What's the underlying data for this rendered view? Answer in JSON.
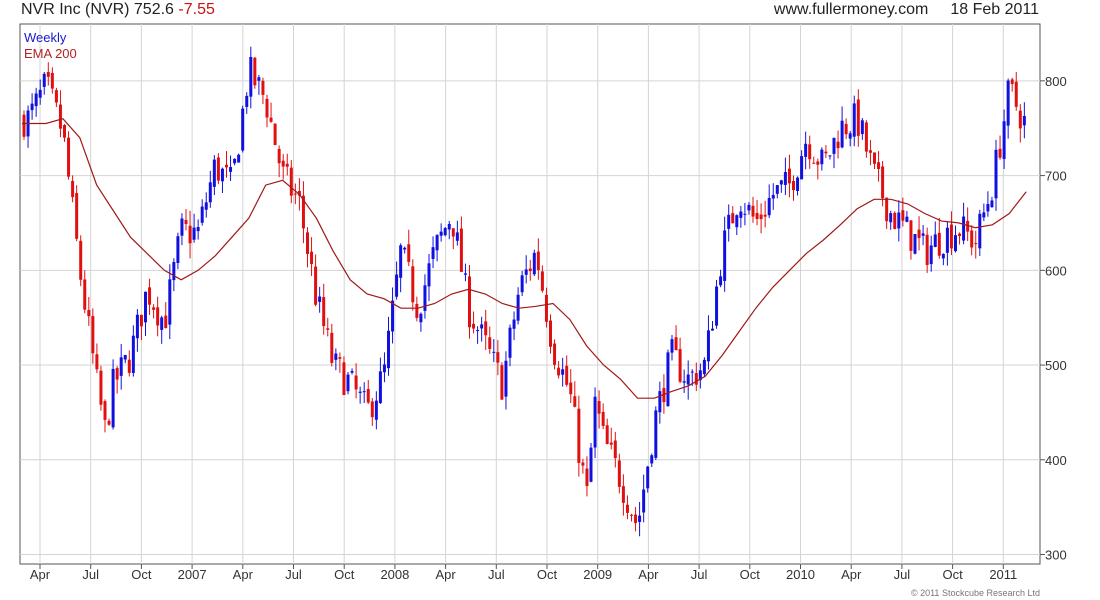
{
  "header": {
    "title": "NVR Inc (NVR)",
    "last_price": "752.6",
    "change": "-7.55",
    "source": "www.fullermoney.com",
    "date": "18 Feb 2011"
  },
  "copyright": "© 2011 Stockcube Research Ltd",
  "colors": {
    "up": "#1010e0",
    "down": "#e01010",
    "ema": "#a01818",
    "grid": "#d4d4d4",
    "axis": "#555555"
  },
  "chart_data": {
    "type": "candlestick",
    "legend": [
      "Weekly",
      "EMA 200"
    ],
    "legend_position": "top-left",
    "x_ticks": [
      "Apr",
      "Jul",
      "Oct",
      "2007",
      "Apr",
      "Jul",
      "Oct",
      "2008",
      "Apr",
      "Jul",
      "Oct",
      "2009",
      "Apr",
      "Jul",
      "Oct",
      "2010",
      "Apr",
      "Jul",
      "Oct",
      "2011"
    ],
    "y_ticks": [
      300,
      400,
      500,
      600,
      700,
      800
    ],
    "ylim": [
      290,
      860
    ],
    "y_axis_side": "right",
    "grid": true,
    "weekly_close_path": [
      [
        "Mar 2006",
        760
      ],
      [
        "Apr 2006",
        795
      ],
      [
        "May 2006",
        745
      ],
      [
        "Jun 2006",
        600
      ],
      [
        "Jul 2006",
        480
      ],
      [
        "Jul 2006 (low)",
        430
      ],
      [
        "Aug 2006",
        480
      ],
      [
        "Sep 2006",
        510
      ],
      [
        "Oct 2006",
        580
      ],
      [
        "Nov 2006",
        545
      ],
      [
        "Dec 2006",
        640
      ],
      [
        "Jan 2007",
        640
      ],
      [
        "Feb 2007",
        710
      ],
      [
        "Mar 2007",
        690
      ],
      [
        "Apr 2007",
        810
      ],
      [
        "May 2007",
        780
      ],
      [
        "Jun 2007",
        700
      ],
      [
        "Jul 2007",
        670
      ],
      [
        "Aug 2007",
        570
      ],
      [
        "Sep 2007",
        500
      ],
      [
        "Oct 2007",
        480
      ],
      [
        "Nov 2007",
        450
      ],
      [
        "Dec 2007",
        490
      ],
      [
        "Jan 2008",
        620
      ],
      [
        "Feb 2008",
        560
      ],
      [
        "Mar 2008",
        620
      ],
      [
        "Apr 2008",
        660
      ],
      [
        "May 2008",
        560
      ],
      [
        "Jun 2008",
        520
      ],
      [
        "Jul 2008",
        480
      ],
      [
        "Aug 2008",
        580
      ],
      [
        "Sep 2008",
        620
      ],
      [
        "Oct 2008",
        520
      ],
      [
        "Nov 2008",
        470
      ],
      [
        "Dec 2008",
        360
      ],
      [
        "Dec 2008 (rebound)",
        460
      ],
      [
        "Jan 2009",
        420
      ],
      [
        "Feb 2009",
        380
      ],
      [
        "Mar 2009 (low)",
        330
      ],
      [
        "Apr 2009",
        440
      ],
      [
        "May 2009",
        510
      ],
      [
        "Jun 2009",
        485
      ],
      [
        "Jul 2009",
        500
      ],
      [
        "Aug 2009",
        620
      ],
      [
        "Sep 2009",
        680
      ],
      [
        "Oct 2009",
        650
      ],
      [
        "Nov 2009",
        680
      ],
      [
        "Dec 2009",
        690
      ],
      [
        "Jan 2010",
        740
      ],
      [
        "Feb 2010",
        710
      ],
      [
        "Mar 2010",
        750
      ],
      [
        "Apr 2010",
        760
      ],
      [
        "May 2010",
        700
      ],
      [
        "Jun 2010",
        660
      ],
      [
        "Jul 2010",
        640
      ],
      [
        "Aug 2010",
        620
      ],
      [
        "Sep 2010",
        635
      ],
      [
        "Oct 2010",
        645
      ],
      [
        "Nov 2010",
        630
      ],
      [
        "Dec 2010",
        690
      ],
      [
        "Jan 2011",
        790
      ],
      [
        "Feb 2011",
        752.6
      ]
    ],
    "ema_path": [
      [
        "Mar 2006",
        755
      ],
      [
        "Apr 2006",
        755
      ],
      [
        "May 2006",
        760
      ],
      [
        "Jun 2006",
        740
      ],
      [
        "Jul 2006",
        690
      ],
      [
        "Sep 2006",
        635
      ],
      [
        "Nov 2006",
        600
      ],
      [
        "Dec 2006",
        590
      ],
      [
        "Jan 2007",
        600
      ],
      [
        "Feb 2007",
        615
      ],
      [
        "Mar 2007",
        635
      ],
      [
        "Apr 2007",
        655
      ],
      [
        "May 2007",
        690
      ],
      [
        "Jun 2007",
        695
      ],
      [
        "Jul 2007",
        680
      ],
      [
        "Aug 2007",
        655
      ],
      [
        "Sep 2007",
        620
      ],
      [
        "Oct 2007",
        590
      ],
      [
        "Nov 2007",
        575
      ],
      [
        "Dec 2007",
        570
      ],
      [
        "Jan 2008",
        560
      ],
      [
        "Feb 2008",
        560
      ],
      [
        "Mar 2008",
        565
      ],
      [
        "Apr 2008",
        575
      ],
      [
        "May 2008",
        580
      ],
      [
        "Jun 2008",
        575
      ],
      [
        "Jul 2008",
        565
      ],
      [
        "Aug 2008",
        560
      ],
      [
        "Sep 2008",
        562
      ],
      [
        "Oct 2008",
        565
      ],
      [
        "Nov 2008",
        548
      ],
      [
        "Dec 2008",
        520
      ],
      [
        "Jan 2009",
        500
      ],
      [
        "Feb 2009",
        485
      ],
      [
        "Mar 2009",
        465
      ],
      [
        "Apr 2009",
        465
      ],
      [
        "May 2009",
        472
      ],
      [
        "Jun 2009",
        478
      ],
      [
        "Jul 2009",
        488
      ],
      [
        "Aug 2009",
        510
      ],
      [
        "Sep 2009",
        535
      ],
      [
        "Oct 2009",
        560
      ],
      [
        "Nov 2009",
        582
      ],
      [
        "Dec 2009",
        600
      ],
      [
        "Jan 2010",
        618
      ],
      [
        "Feb 2010",
        632
      ],
      [
        "Mar 2010",
        648
      ],
      [
        "Apr 2010",
        665
      ],
      [
        "May 2010",
        675
      ],
      [
        "Jun 2010",
        675
      ],
      [
        "Jul 2010",
        670
      ],
      [
        "Aug 2010",
        660
      ],
      [
        "Sep 2010",
        652
      ],
      [
        "Oct 2010",
        650
      ],
      [
        "Nov 2010",
        645
      ],
      [
        "Dec 2010",
        648
      ],
      [
        "Jan 2011",
        660
      ],
      [
        "Feb 2011",
        683
      ]
    ]
  }
}
